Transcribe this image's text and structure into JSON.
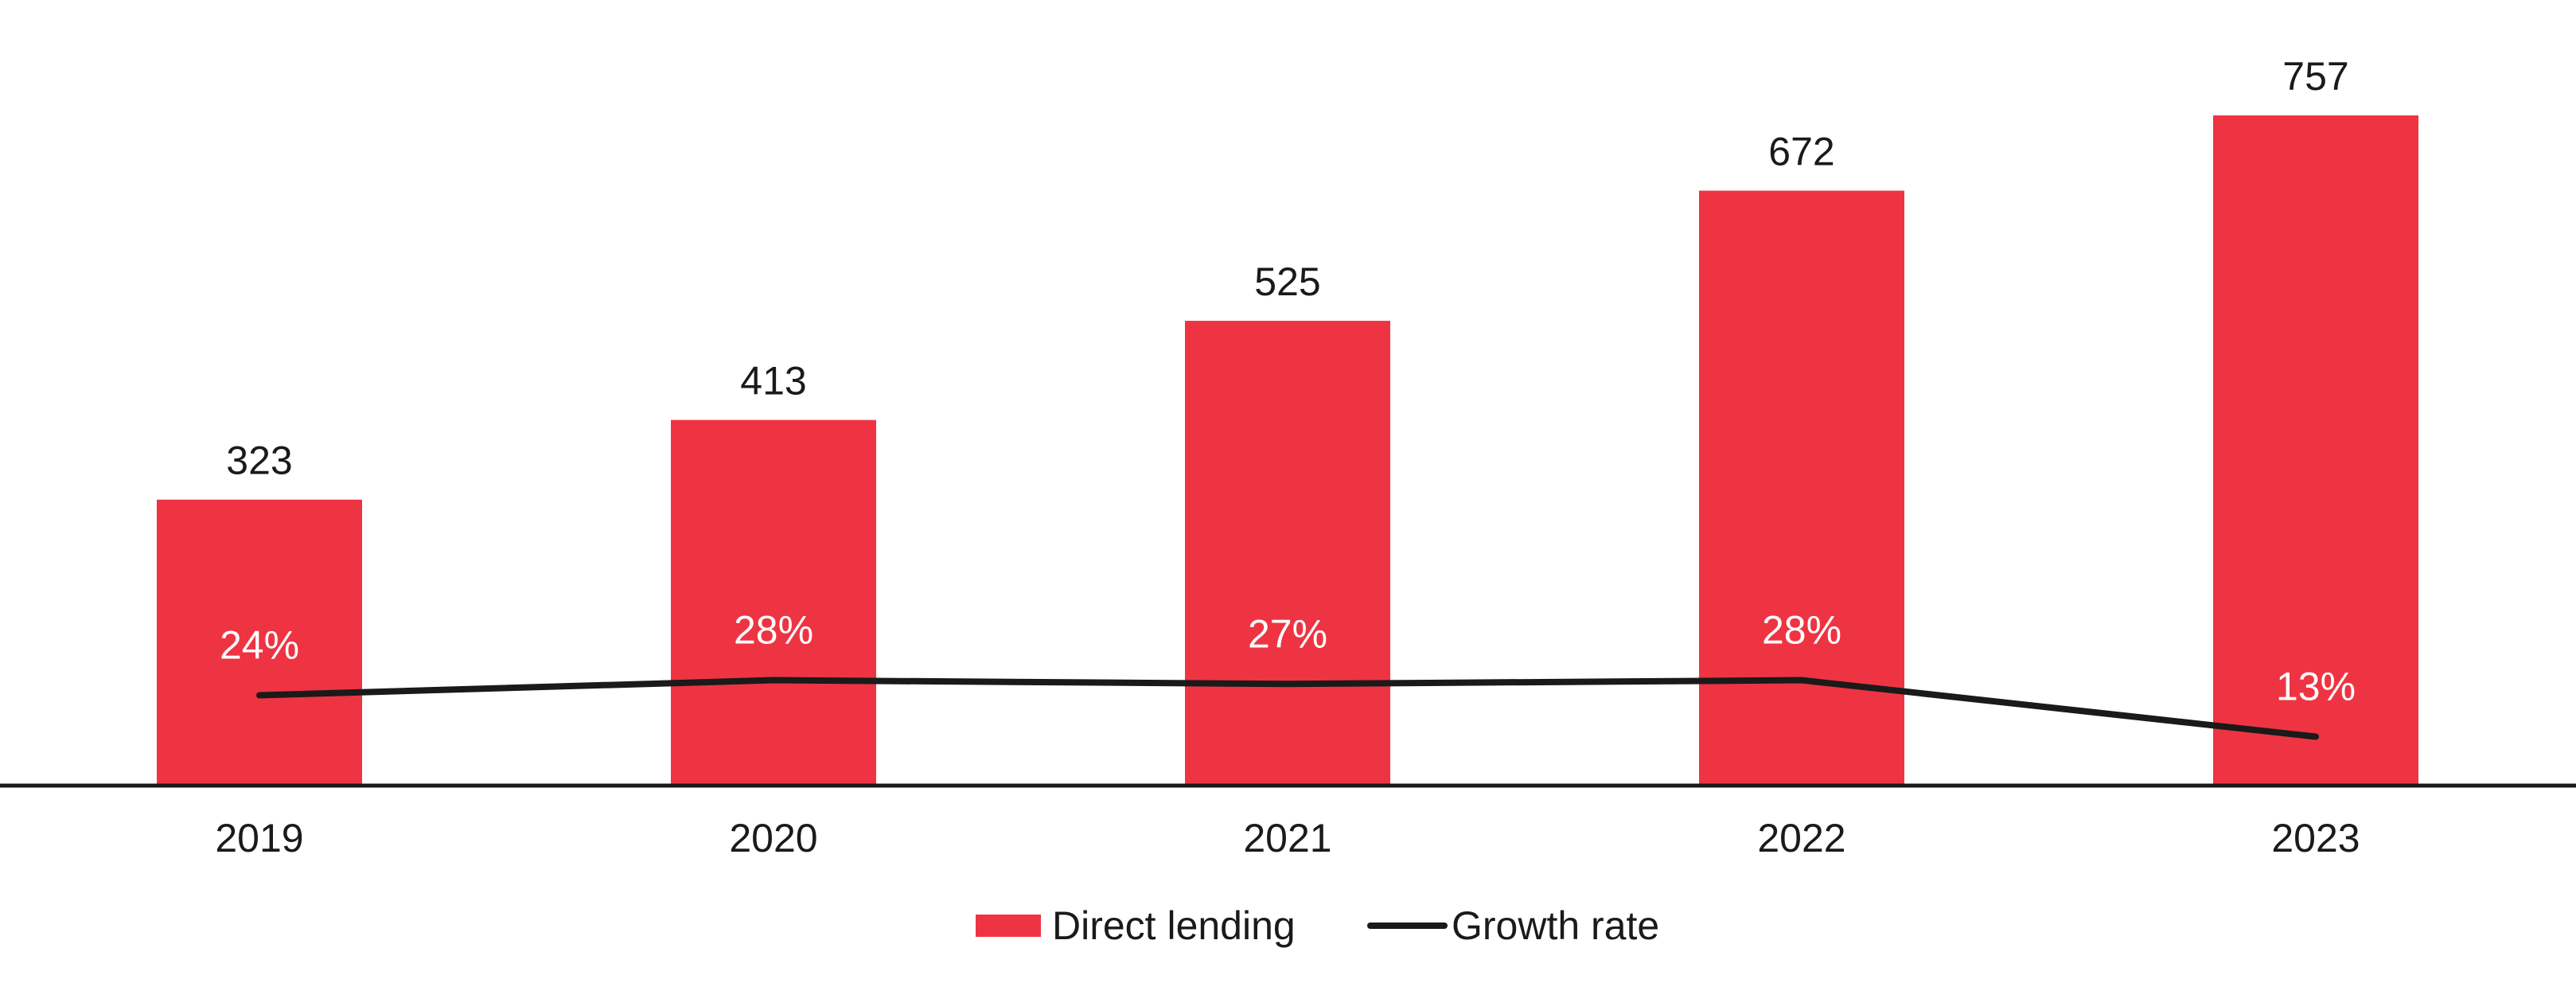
{
  "chart_data": {
    "type": "bar",
    "title": "",
    "xlabel": "",
    "ylabel": "",
    "categories": [
      "2019",
      "2020",
      "2021",
      "2022",
      "2023"
    ],
    "series": [
      {
        "name": "Direct lending",
        "type": "bar",
        "color": "#EE3442",
        "values": [
          323,
          413,
          525,
          672,
          757
        ],
        "labels": [
          "323",
          "413",
          "525",
          "672",
          "757"
        ]
      },
      {
        "name": "Growth rate",
        "type": "line",
        "color": "#1A1A1A",
        "values": [
          24,
          28,
          27,
          28,
          13
        ],
        "labels": [
          "24%",
          "28%",
          "27%",
          "28%",
          "13%"
        ]
      }
    ],
    "ylim": [
      0,
      757
    ],
    "grid": false,
    "legend": {
      "position": "bottom-center",
      "entries": [
        "Direct lending",
        "Growth rate"
      ]
    }
  }
}
